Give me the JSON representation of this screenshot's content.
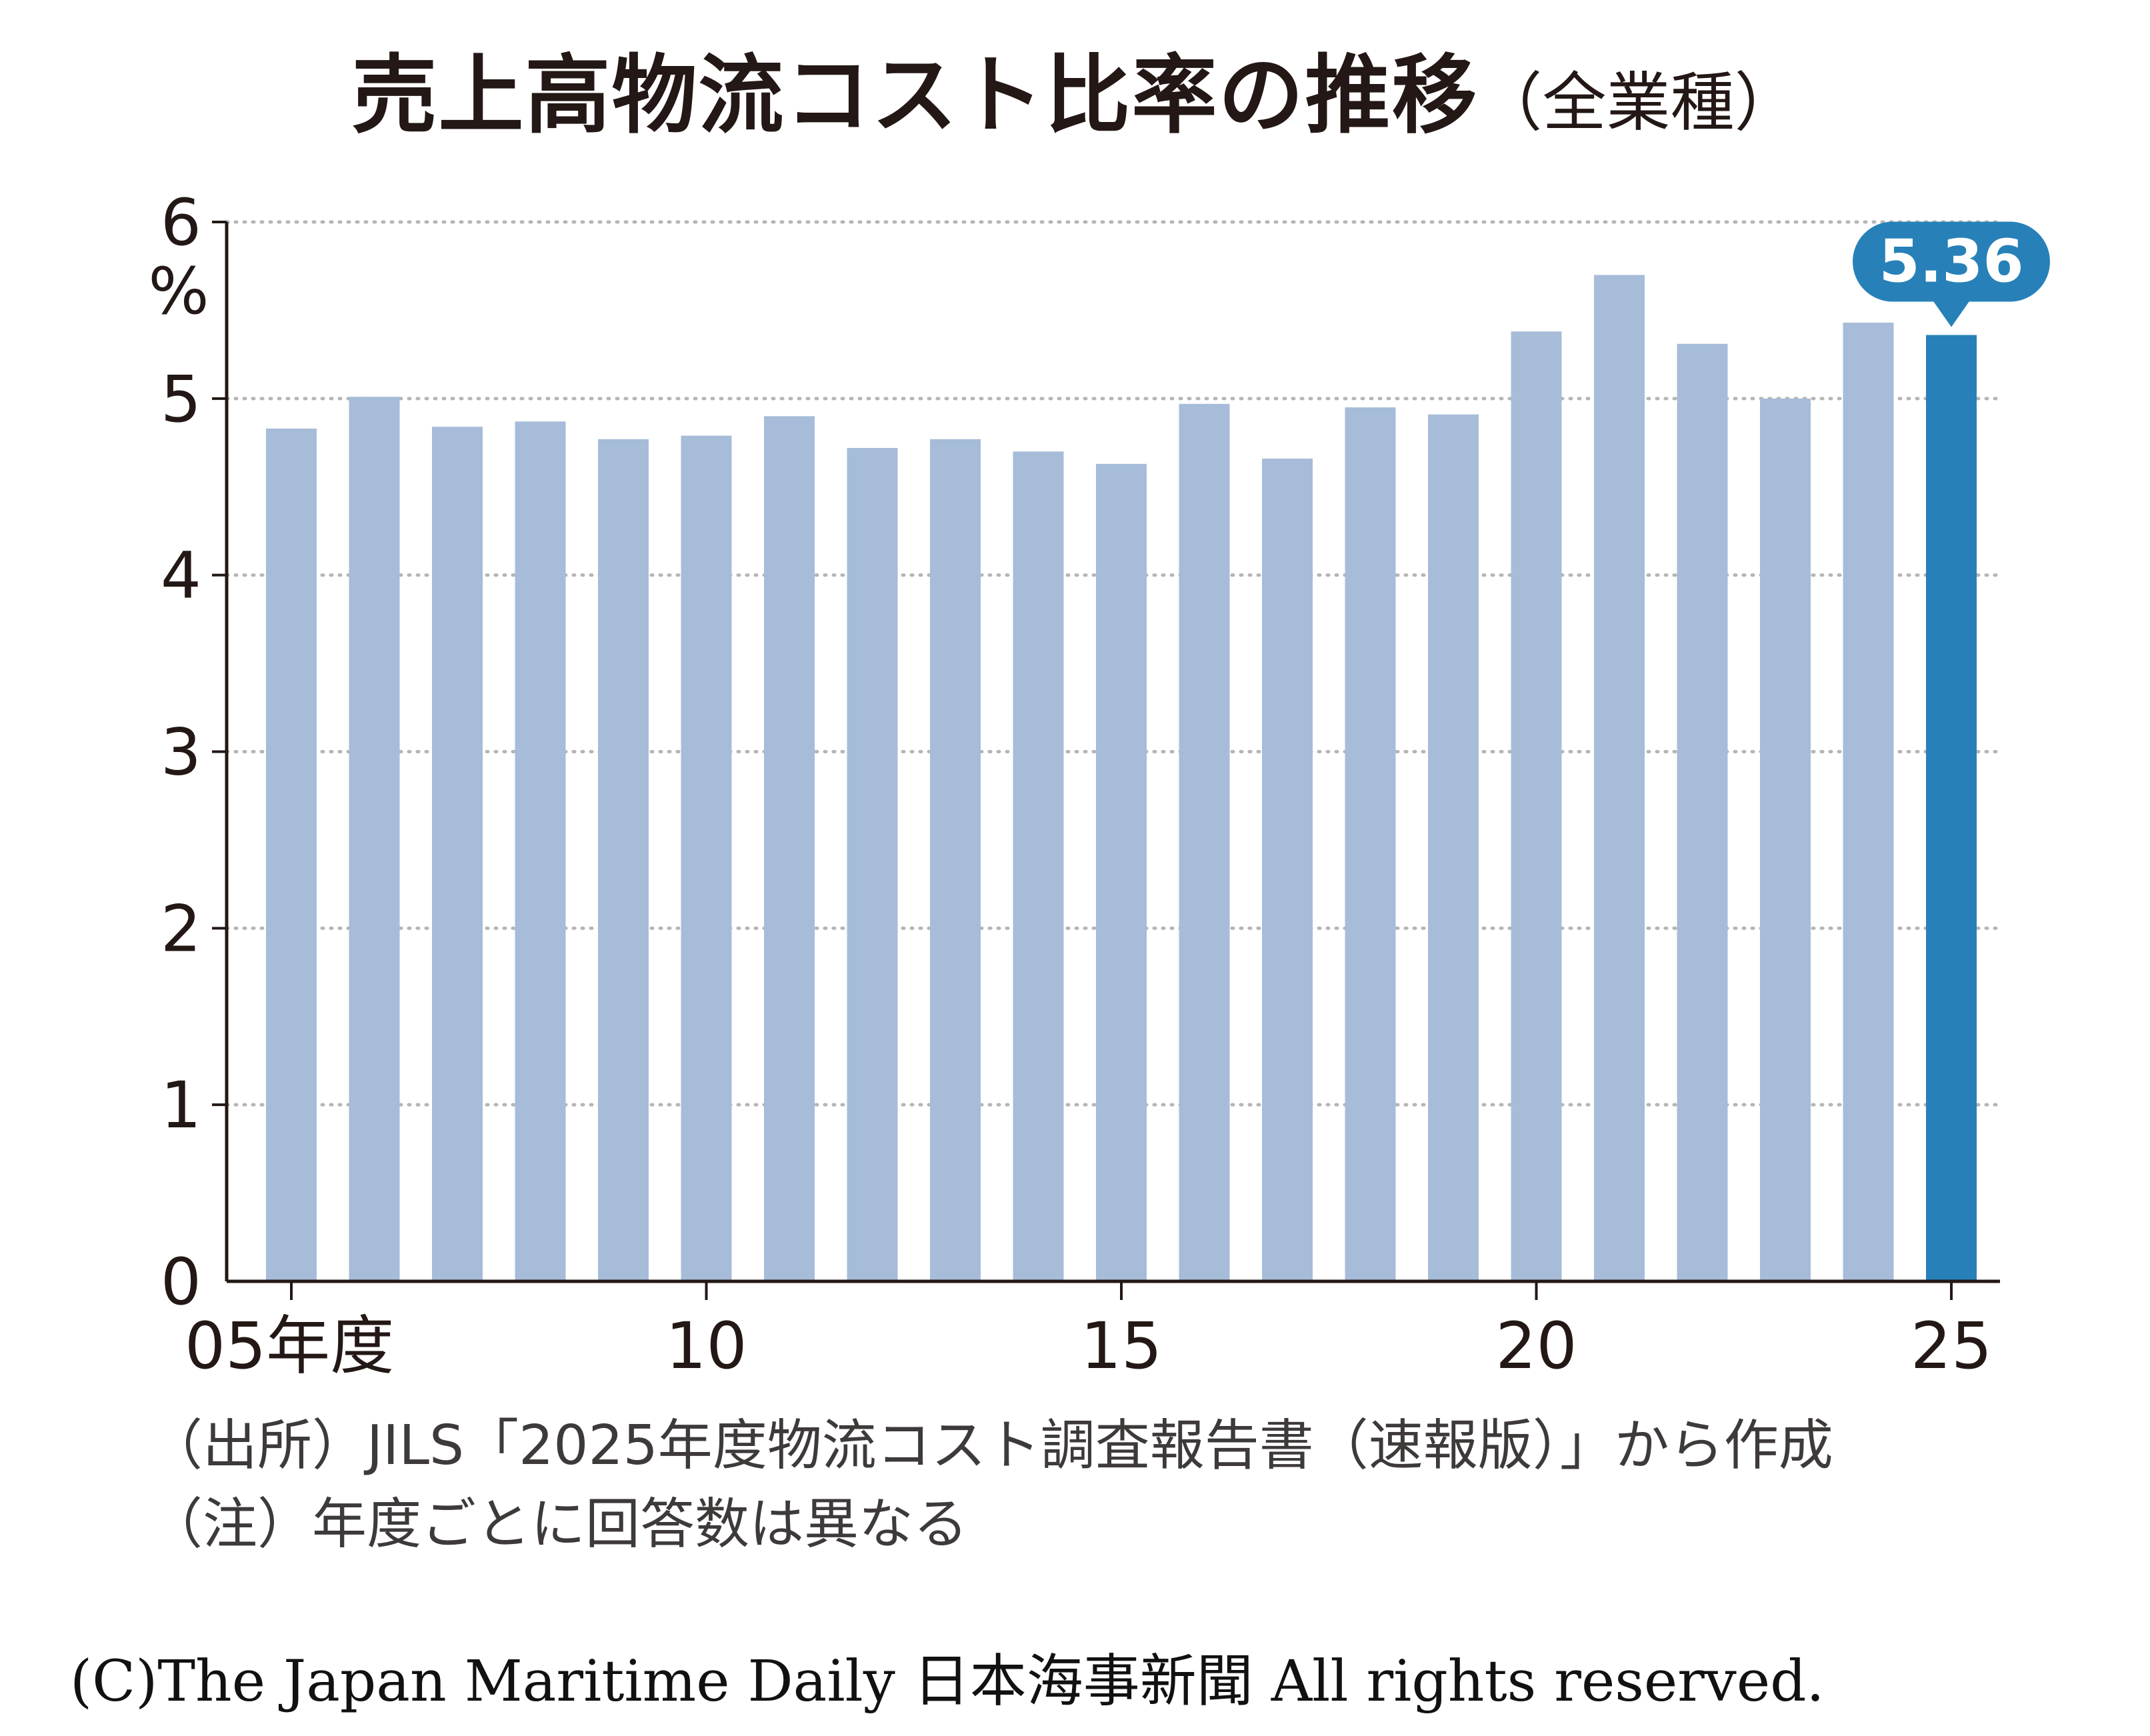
{
  "colors": {
    "bar": "#a6bcd8",
    "highlight": "#2781b8",
    "grid": "#b5b5b5",
    "axis": "#231815",
    "callout_text": "#ffffff"
  },
  "chart_data": {
    "type": "bar",
    "title": "売上高物流コスト比率の推移",
    "subtitle": "（全業種）",
    "ylabel": "%",
    "xlabel": "",
    "ylim": [
      0,
      6
    ],
    "yticks": [
      "0",
      "1",
      "2",
      "3",
      "4",
      "5",
      "6"
    ],
    "grid": "dotted",
    "x_tick_labels": [
      {
        "year": 2005,
        "label": "05年度"
      },
      {
        "year": 2010,
        "label": "10"
      },
      {
        "year": 2015,
        "label": "15"
      },
      {
        "year": 2020,
        "label": "20"
      },
      {
        "year": 2025,
        "label": "25"
      }
    ],
    "categories": [
      2005,
      2006,
      2007,
      2008,
      2009,
      2010,
      2011,
      2012,
      2013,
      2014,
      2015,
      2016,
      2017,
      2018,
      2019,
      2020,
      2021,
      2022,
      2023,
      2024,
      2025
    ],
    "values": [
      4.83,
      5.01,
      4.84,
      4.87,
      4.77,
      4.79,
      4.9,
      4.72,
      4.77,
      4.7,
      4.63,
      4.97,
      4.66,
      4.95,
      4.91,
      5.38,
      5.7,
      5.31,
      5.0,
      5.43,
      5.36
    ],
    "highlight_index": 20,
    "annotation": "5.36"
  },
  "notes": {
    "source": "（出所）JILS「2025年度物流コスト調査報告書（速報版）」から作成",
    "remark": "（注）年度ごとに回答数は異なる"
  },
  "copyright": "(C)The Japan Maritime Daily 日本海事新聞 All rights reserved."
}
